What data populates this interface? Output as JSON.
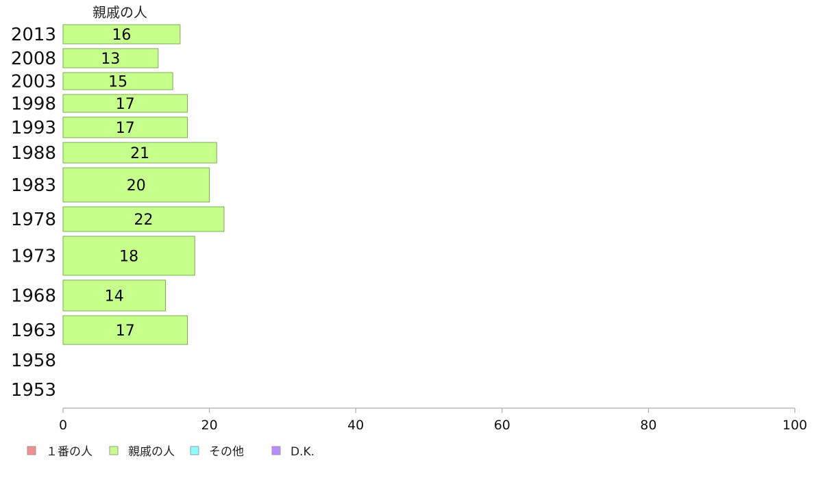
{
  "chart_data": {
    "type": "bar",
    "orientation": "horizontal",
    "stacked": true,
    "series_header": "親戚の人",
    "categories": [
      "2013",
      "2008",
      "2003",
      "1998",
      "1993",
      "1988",
      "1983",
      "1978",
      "1973",
      "1968",
      "1963",
      "1958",
      "1953"
    ],
    "series": [
      {
        "name": "１番の人",
        "color": "#f28e8e",
        "values": [
          null,
          null,
          null,
          null,
          null,
          null,
          null,
          null,
          null,
          null,
          null,
          null,
          null
        ]
      },
      {
        "name": "親戚の人",
        "color": "#c6ff8c",
        "values": [
          16,
          13,
          15,
          17,
          17,
          21,
          20,
          22,
          18,
          14,
          17,
          null,
          null
        ]
      },
      {
        "name": "その他",
        "color": "#8cffff",
        "values": [
          null,
          null,
          null,
          null,
          null,
          null,
          null,
          null,
          null,
          null,
          null,
          null,
          null
        ]
      },
      {
        "name": "D.K.",
        "color": "#b98cff",
        "values": [
          null,
          null,
          null,
          null,
          null,
          null,
          null,
          null,
          null,
          null,
          null,
          null,
          null
        ]
      }
    ],
    "xlim": [
      0,
      100
    ],
    "xticks": [
      "0",
      "20",
      "40",
      "60",
      "80",
      "100"
    ],
    "legend_position": "bottom-left",
    "grid": false
  }
}
